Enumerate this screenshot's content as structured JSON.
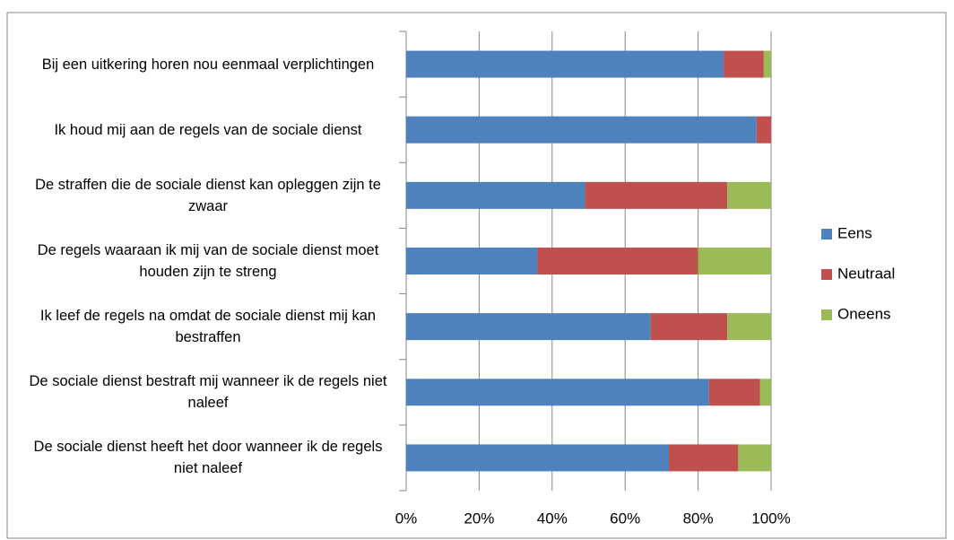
{
  "chart_data": {
    "type": "stacked_barh",
    "categories": [
      "Bij een uitkering horen nou eenmaal verplichtingen",
      "Ik houd mij aan de regels van de sociale dienst",
      "De straffen die de sociale dienst kan opleggen zijn te zwaar",
      "De regels waaraan ik mij van de sociale dienst moet houden zijn te streng",
      "Ik leef de regels na omdat de sociale dienst mij kan bestraffen",
      "De sociale dienst bestraft mij wanneer ik de regels niet naleef",
      "De sociale dienst heeft het door wanneer ik de regels niet naleef"
    ],
    "series": [
      {
        "name": "Eens",
        "color": "#4f81bd",
        "values": [
          87,
          96,
          49,
          36,
          67,
          83,
          72
        ]
      },
      {
        "name": "Neutraal",
        "color": "#c0504d",
        "values": [
          11,
          4,
          39,
          44,
          21,
          14,
          19
        ]
      },
      {
        "name": "Oneens",
        "color": "#9bbb59",
        "values": [
          2,
          0,
          12,
          20,
          12,
          3,
          9
        ]
      }
    ],
    "xlim": [
      0,
      100
    ],
    "xticks": [
      {
        "value": 0,
        "label": "0%"
      },
      {
        "value": 20,
        "label": "20%"
      },
      {
        "value": 40,
        "label": "40%"
      },
      {
        "value": 60,
        "label": "60%"
      },
      {
        "value": 80,
        "label": "80%"
      },
      {
        "value": 100,
        "label": "100%"
      }
    ],
    "grid": true,
    "legend": "right"
  }
}
